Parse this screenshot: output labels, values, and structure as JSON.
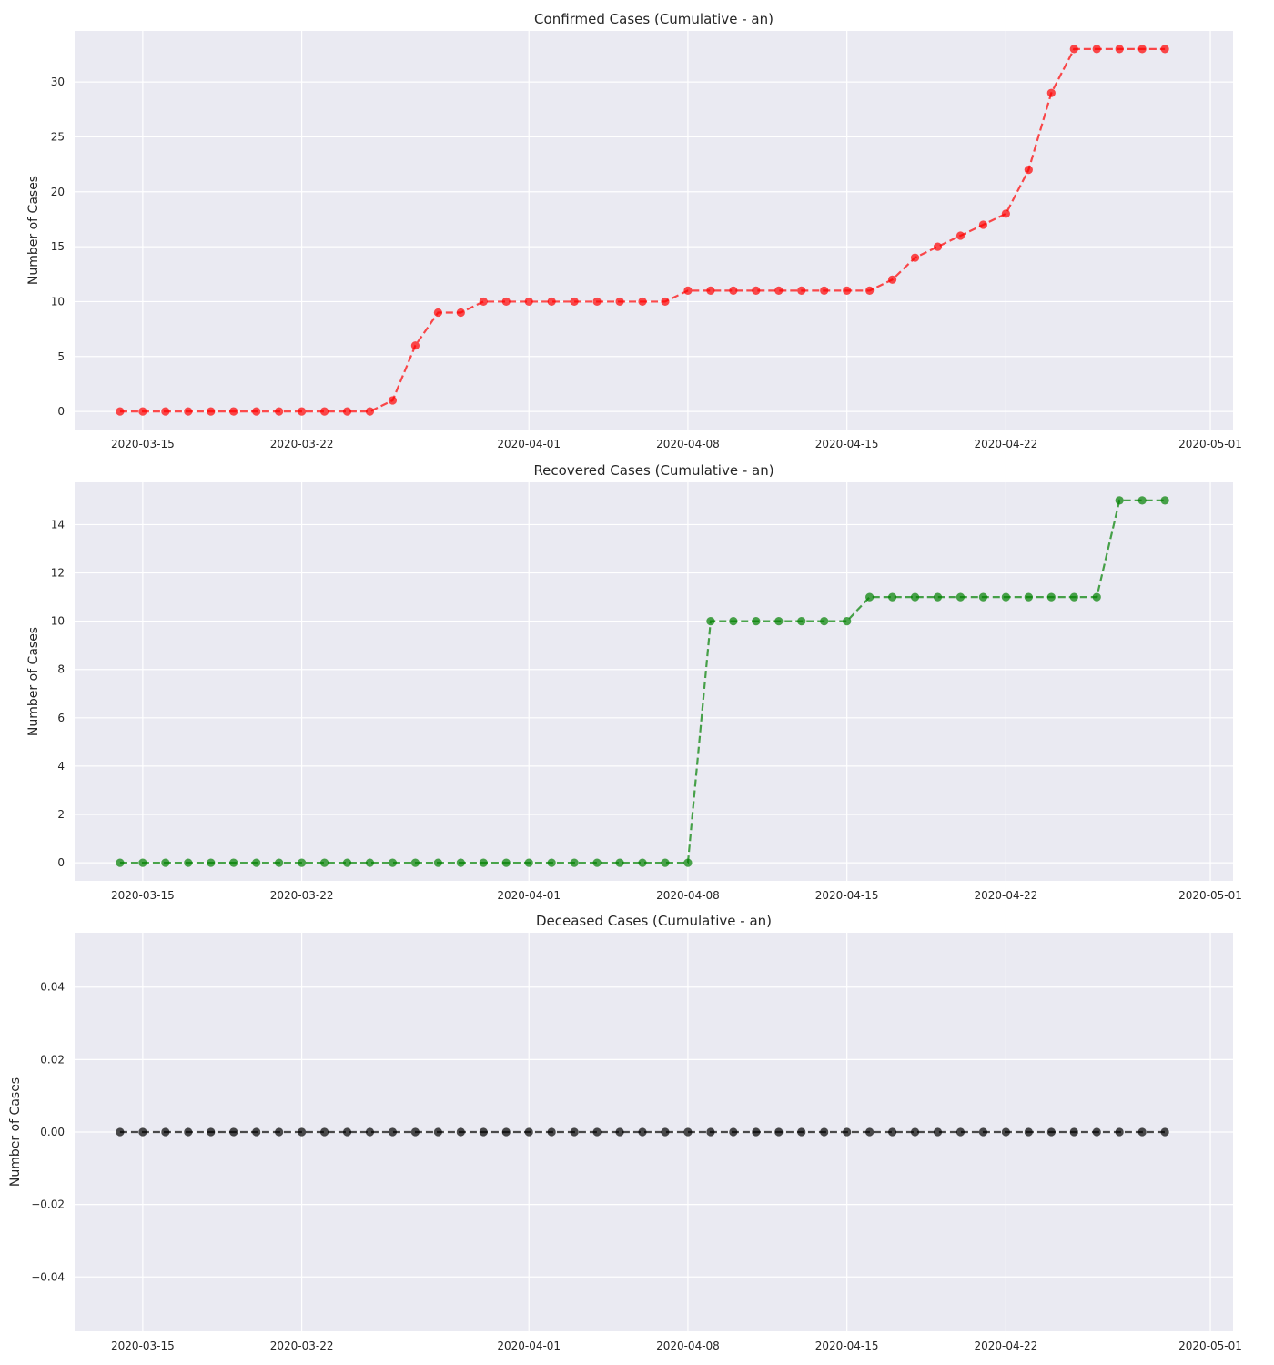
{
  "chart_data": [
    {
      "type": "line",
      "title": "Confirmed Cases (Cumulative - an)",
      "ylabel": "Number of Cases",
      "xlabel": "",
      "x_start": "2020-03-14",
      "x_end": "2020-04-29",
      "xlim": [
        "2020-03-12",
        "2020-05-02"
      ],
      "ylim": [
        -1.65,
        34.65
      ],
      "yticks": [
        0,
        5,
        10,
        15,
        20,
        25,
        30
      ],
      "ytick_labels": [
        "0",
        "5",
        "10",
        "15",
        "20",
        "25",
        "30"
      ],
      "xticks": [
        "2020-03-15",
        "2020-03-22",
        "2020-04-01",
        "2020-04-08",
        "2020-04-15",
        "2020-04-22",
        "2020-05-01"
      ],
      "grid": true,
      "color": "#ff0000",
      "linestyle": "dashed",
      "marker": "circle",
      "values": [
        0,
        0,
        0,
        0,
        0,
        0,
        0,
        0,
        0,
        0,
        0,
        0,
        1,
        6,
        9,
        9,
        10,
        10,
        10,
        10,
        10,
        10,
        10,
        10,
        10,
        11,
        11,
        11,
        11,
        11,
        11,
        11,
        11,
        11,
        12,
        14,
        15,
        16,
        17,
        18,
        22,
        29,
        33,
        33,
        33,
        33,
        33
      ]
    },
    {
      "type": "line",
      "title": "Recovered Cases (Cumulative - an)",
      "ylabel": "Number of Cases",
      "xlabel": "",
      "x_start": "2020-03-14",
      "x_end": "2020-04-29",
      "xlim": [
        "2020-03-12",
        "2020-05-02"
      ],
      "ylim": [
        -0.75,
        15.75
      ],
      "yticks": [
        0,
        2,
        4,
        6,
        8,
        10,
        12,
        14
      ],
      "ytick_labels": [
        "0",
        "2",
        "4",
        "6",
        "8",
        "10",
        "12",
        "14"
      ],
      "xticks": [
        "2020-03-15",
        "2020-03-22",
        "2020-04-01",
        "2020-04-08",
        "2020-04-15",
        "2020-04-22",
        "2020-05-01"
      ],
      "grid": true,
      "color": "#008000",
      "linestyle": "dashed",
      "marker": "circle",
      "values": [
        0,
        0,
        0,
        0,
        0,
        0,
        0,
        0,
        0,
        0,
        0,
        0,
        0,
        0,
        0,
        0,
        0,
        0,
        0,
        0,
        0,
        0,
        0,
        0,
        0,
        0,
        10,
        10,
        10,
        10,
        10,
        10,
        10,
        11,
        11,
        11,
        11,
        11,
        11,
        11,
        11,
        11,
        11,
        11,
        15,
        15,
        15
      ]
    },
    {
      "type": "line",
      "title": "Deceased Cases (Cumulative - an)",
      "ylabel": "Number of Cases",
      "xlabel": "",
      "x_start": "2020-03-14",
      "x_end": "2020-04-29",
      "xlim": [
        "2020-03-12",
        "2020-05-02"
      ],
      "ylim": [
        -0.055,
        0.055
      ],
      "yticks": [
        -0.04,
        -0.02,
        0,
        0.02,
        0.04
      ],
      "ytick_labels": [
        "−0.04",
        "−0.02",
        "0.00",
        "0.02",
        "0.04"
      ],
      "xticks": [
        "2020-03-15",
        "2020-03-22",
        "2020-04-01",
        "2020-04-08",
        "2020-04-15",
        "2020-04-22",
        "2020-05-01"
      ],
      "grid": true,
      "color": "#000000",
      "linestyle": "dashed",
      "marker": "circle",
      "values": [
        0,
        0,
        0,
        0,
        0,
        0,
        0,
        0,
        0,
        0,
        0,
        0,
        0,
        0,
        0,
        0,
        0,
        0,
        0,
        0,
        0,
        0,
        0,
        0,
        0,
        0,
        0,
        0,
        0,
        0,
        0,
        0,
        0,
        0,
        0,
        0,
        0,
        0,
        0,
        0,
        0,
        0,
        0,
        0,
        0,
        0,
        0
      ]
    }
  ]
}
